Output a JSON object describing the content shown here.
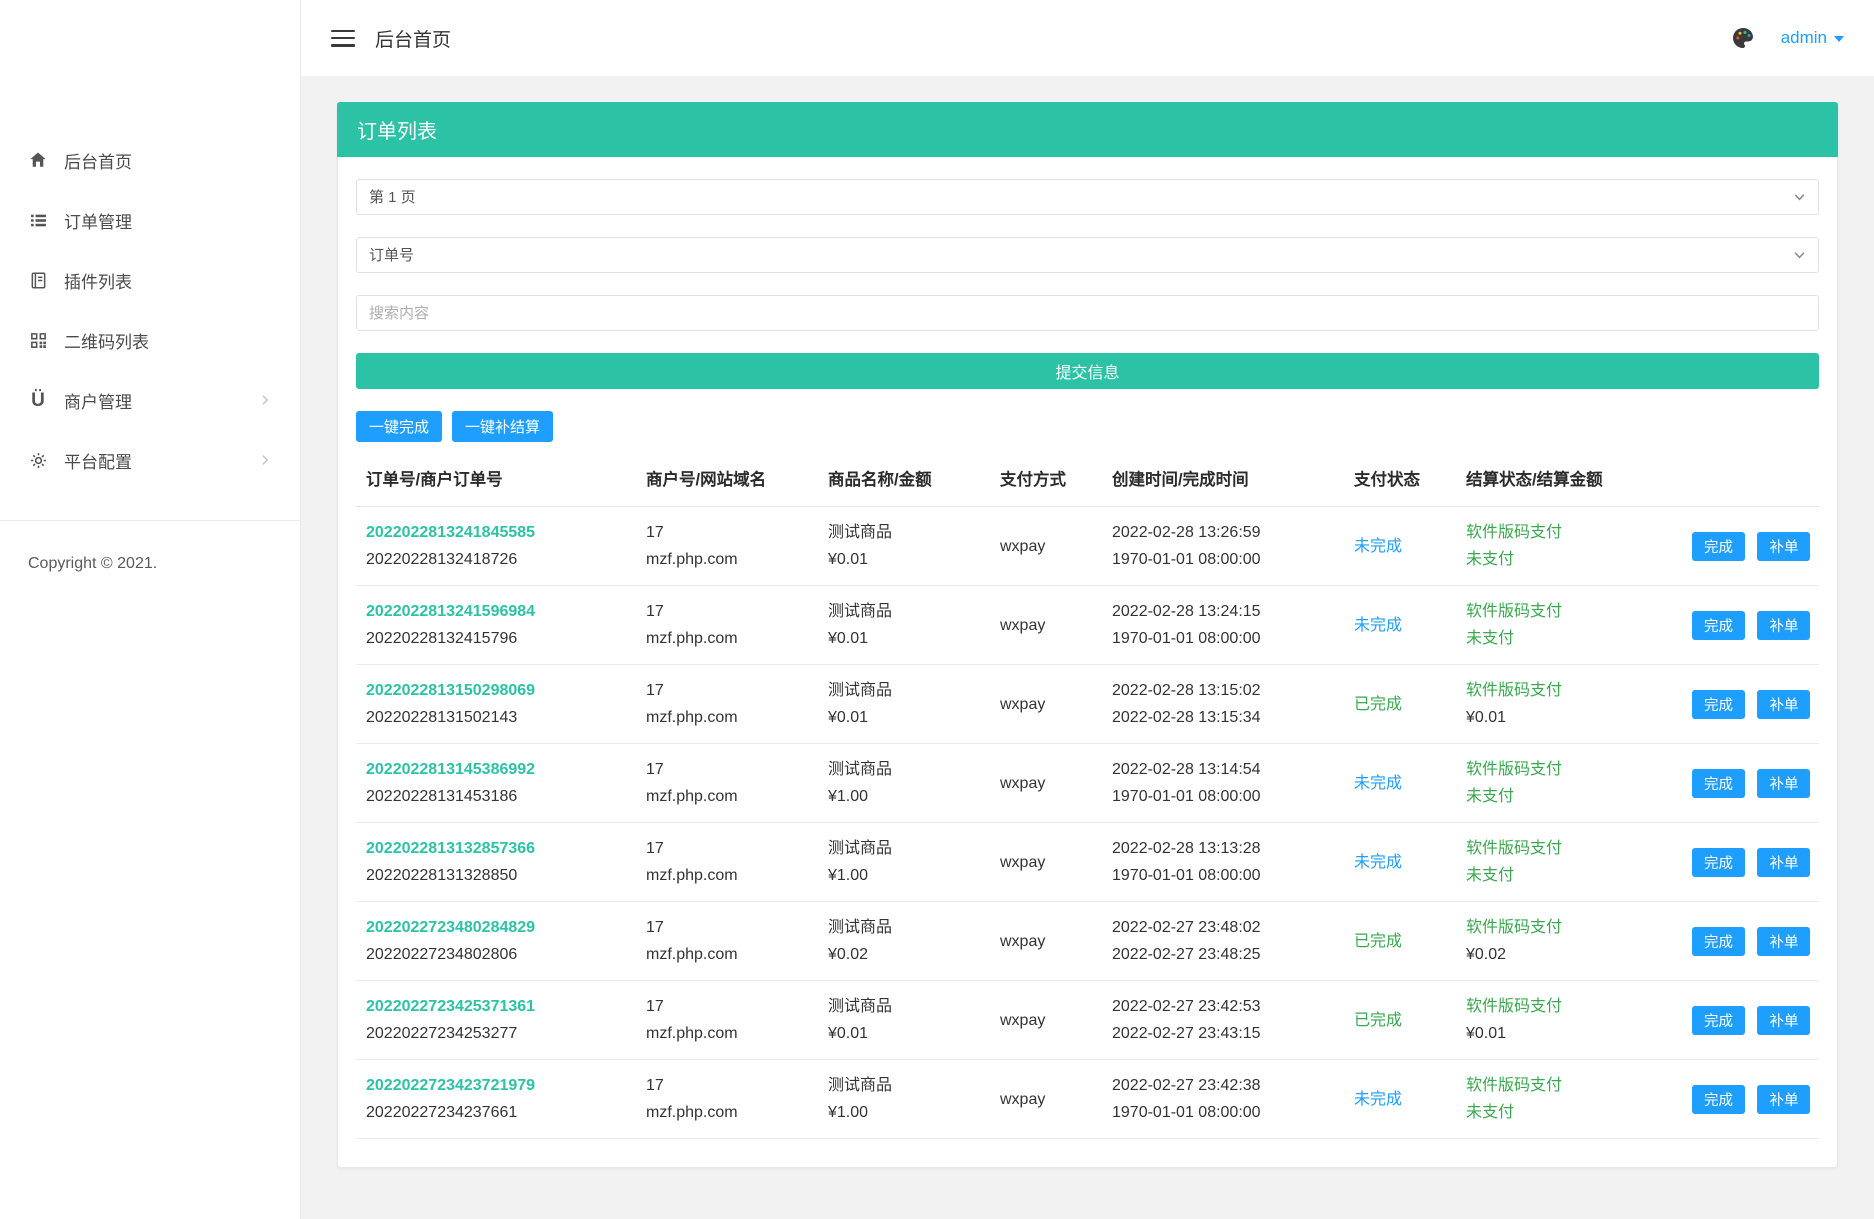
{
  "colors": {
    "accent_teal": "#2cc2a5",
    "action_blue": "#1E9FFF",
    "status_green": "#3aa84f",
    "status_blue": "#1E9FFF"
  },
  "topbar": {
    "title": "后台首页",
    "user": "admin"
  },
  "sidebar": {
    "items": [
      {
        "id": "home",
        "label": "后台首页",
        "icon": "home",
        "expandable": false
      },
      {
        "id": "orders",
        "label": "订单管理",
        "icon": "list",
        "expandable": false
      },
      {
        "id": "plugins",
        "label": "插件列表",
        "icon": "book",
        "expandable": false
      },
      {
        "id": "qrcodes",
        "label": "二维码列表",
        "icon": "qrcode",
        "expandable": false
      },
      {
        "id": "merchants",
        "label": "商户管理",
        "icon": "user",
        "expandable": true
      },
      {
        "id": "platform",
        "label": "平台配置",
        "icon": "gear",
        "expandable": true
      }
    ],
    "copyright": "Copyright © 2021."
  },
  "panel": {
    "title": "订单列表",
    "page_select_value": "第 1 页",
    "field_select_value": "订单号",
    "search_placeholder": "搜索内容",
    "submit_label": "提交信息",
    "bulk_complete_label": "一键完成",
    "bulk_settle_label": "一键补结算",
    "row_actions": {
      "complete": "完成",
      "supplement": "补单"
    },
    "table": {
      "headers": [
        "订单号/商户订单号",
        "商户号/网站域名",
        "商品名称/金额",
        "支付方式",
        "创建时间/完成时间",
        "支付状态",
        "结算状态/结算金额",
        ""
      ],
      "rows": [
        {
          "order_no": "2022022813241845585",
          "merchant_order_no": "20220228132418726",
          "merchant_id": "17",
          "domain": "mzf.php.com",
          "product": "测试商品",
          "amount": "¥0.01",
          "pay_method": "wxpay",
          "created_at": "2022-02-28 13:26:59",
          "finished_at": "1970-01-01 08:00:00",
          "pay_status": "未完成",
          "pay_status_state": "pending",
          "settle_type": "软件版码支付",
          "settle_value": "未支付"
        },
        {
          "order_no": "2022022813241596984",
          "merchant_order_no": "20220228132415796",
          "merchant_id": "17",
          "domain": "mzf.php.com",
          "product": "测试商品",
          "amount": "¥0.01",
          "pay_method": "wxpay",
          "created_at": "2022-02-28 13:24:15",
          "finished_at": "1970-01-01 08:00:00",
          "pay_status": "未完成",
          "pay_status_state": "pending",
          "settle_type": "软件版码支付",
          "settle_value": "未支付"
        },
        {
          "order_no": "2022022813150298069",
          "merchant_order_no": "20220228131502143",
          "merchant_id": "17",
          "domain": "mzf.php.com",
          "product": "测试商品",
          "amount": "¥0.01",
          "pay_method": "wxpay",
          "created_at": "2022-02-28 13:15:02",
          "finished_at": "2022-02-28 13:15:34",
          "pay_status": "已完成",
          "pay_status_state": "done",
          "settle_type": "软件版码支付",
          "settle_value": "¥0.01"
        },
        {
          "order_no": "2022022813145386992",
          "merchant_order_no": "20220228131453186",
          "merchant_id": "17",
          "domain": "mzf.php.com",
          "product": "测试商品",
          "amount": "¥1.00",
          "pay_method": "wxpay",
          "created_at": "2022-02-28 13:14:54",
          "finished_at": "1970-01-01 08:00:00",
          "pay_status": "未完成",
          "pay_status_state": "pending",
          "settle_type": "软件版码支付",
          "settle_value": "未支付"
        },
        {
          "order_no": "2022022813132857366",
          "merchant_order_no": "20220228131328850",
          "merchant_id": "17",
          "domain": "mzf.php.com",
          "product": "测试商品",
          "amount": "¥1.00",
          "pay_method": "wxpay",
          "created_at": "2022-02-28 13:13:28",
          "finished_at": "1970-01-01 08:00:00",
          "pay_status": "未完成",
          "pay_status_state": "pending",
          "settle_type": "软件版码支付",
          "settle_value": "未支付"
        },
        {
          "order_no": "2022022723480284829",
          "merchant_order_no": "20220227234802806",
          "merchant_id": "17",
          "domain": "mzf.php.com",
          "product": "测试商品",
          "amount": "¥0.02",
          "pay_method": "wxpay",
          "created_at": "2022-02-27 23:48:02",
          "finished_at": "2022-02-27 23:48:25",
          "pay_status": "已完成",
          "pay_status_state": "done",
          "settle_type": "软件版码支付",
          "settle_value": "¥0.02"
        },
        {
          "order_no": "2022022723425371361",
          "merchant_order_no": "20220227234253277",
          "merchant_id": "17",
          "domain": "mzf.php.com",
          "product": "测试商品",
          "amount": "¥0.01",
          "pay_method": "wxpay",
          "created_at": "2022-02-27 23:42:53",
          "finished_at": "2022-02-27 23:43:15",
          "pay_status": "已完成",
          "pay_status_state": "done",
          "settle_type": "软件版码支付",
          "settle_value": "¥0.01"
        },
        {
          "order_no": "2022022723423721979",
          "merchant_order_no": "20220227234237661",
          "merchant_id": "17",
          "domain": "mzf.php.com",
          "product": "测试商品",
          "amount": "¥1.00",
          "pay_method": "wxpay",
          "created_at": "2022-02-27 23:42:38",
          "finished_at": "1970-01-01 08:00:00",
          "pay_status": "未完成",
          "pay_status_state": "pending",
          "settle_type": "软件版码支付",
          "settle_value": "未支付"
        }
      ]
    }
  }
}
